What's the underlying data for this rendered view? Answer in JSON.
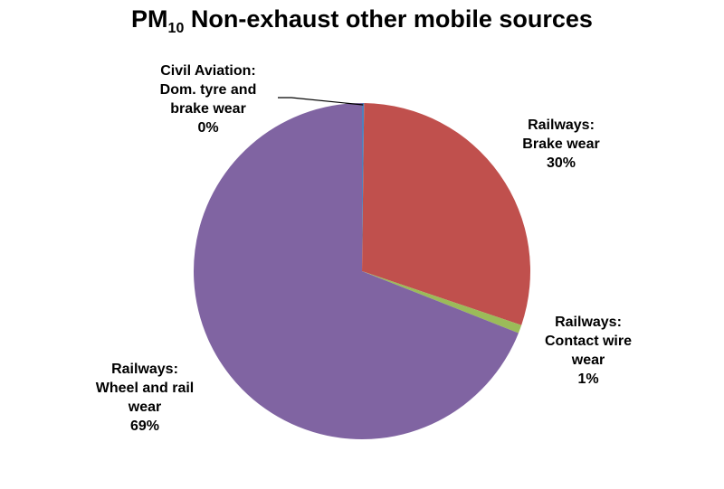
{
  "chart_data": {
    "type": "pie",
    "title": {
      "prefix": "PM",
      "subscript": "10",
      "rest": " Non-exhaust other mobile sources"
    },
    "slices": [
      {
        "label_lines": [
          "Civil Aviation:",
          "Dom. tyre and",
          "brake wear"
        ],
        "percent_label": "0%",
        "value": 0.2,
        "color": "#4f81bd"
      },
      {
        "label_lines": [
          "Railways:",
          "Brake wear"
        ],
        "percent_label": "30%",
        "value": 30,
        "color": "#c0504d"
      },
      {
        "label_lines": [
          "Railways:",
          "Contact wire",
          "wear"
        ],
        "percent_label": "1%",
        "value": 0.8,
        "color": "#9bbb59"
      },
      {
        "label_lines": [
          "Railways:",
          "Wheel and rail",
          "wear"
        ],
        "percent_label": "69%",
        "value": 69,
        "color": "#8064a2"
      }
    ],
    "legend": "none"
  }
}
